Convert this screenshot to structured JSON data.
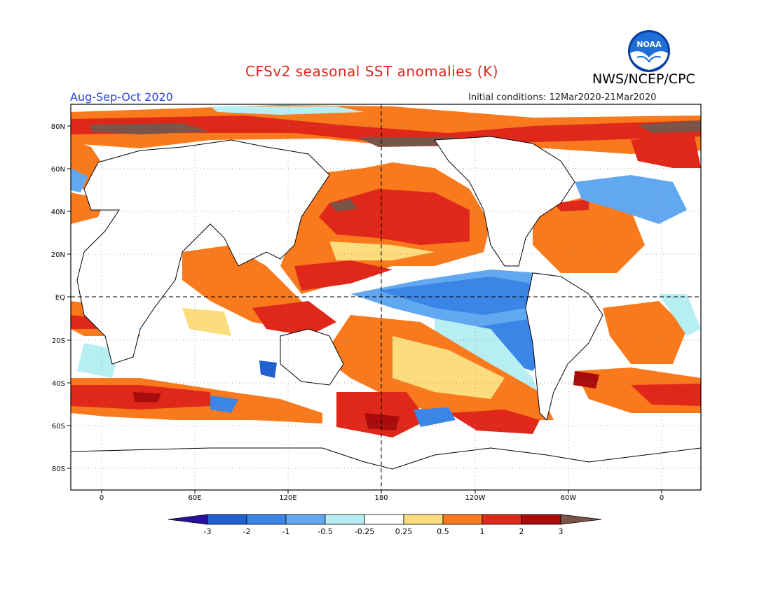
{
  "title": "CFSv2 seasonal SST anomalies (K)",
  "season": "Aug-Sep-Oct 2020",
  "initial_conditions": "Initial conditions: 12Mar2020-21Mar2020",
  "agency": "NWS/NCEP/CPC",
  "logo_text": "NOAA",
  "lat_labels": [
    "80N",
    "60N",
    "40N",
    "20N",
    "EQ",
    "20S",
    "40S",
    "60S",
    "80S"
  ],
  "lon_labels": [
    "0",
    "60E",
    "120E",
    "180",
    "120W",
    "60W",
    "0"
  ],
  "colorbar": {
    "tick_labels": [
      "-3",
      "-2",
      "-1",
      "-0.5",
      "-0.25",
      "0.25",
      "0.5",
      "1",
      "2",
      "3"
    ],
    "colors": [
      "#2a0fa0",
      "#2060d0",
      "#3a85e6",
      "#62a8f0",
      "#b6eef2",
      "#ffffff",
      "#fbdd7e",
      "#f87a1c",
      "#e0281a",
      "#a80c0c",
      "#7a5448"
    ]
  }
}
